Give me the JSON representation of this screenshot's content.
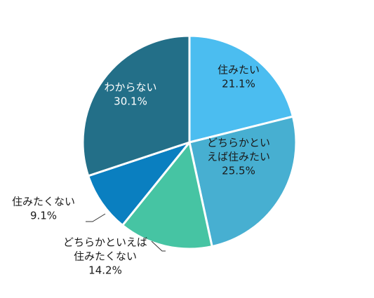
{
  "chart_data": {
    "type": "pie",
    "start_angle_deg": 0,
    "direction": "clockwise",
    "slices": [
      {
        "label_lines": [
          "住みたい",
          "21.1%"
        ],
        "value": 21.1,
        "color": "#4bbdf0",
        "label_color": "#1a1a1a",
        "label_position": "inside"
      },
      {
        "label_lines": [
          "どちらかとい",
          "えば住みたい",
          "25.5%"
        ],
        "value": 25.5,
        "color": "#47afd1",
        "label_color": "#1a1a1a",
        "label_position": "inside"
      },
      {
        "label_lines": [
          "どちらかといえば",
          "住みたくない",
          "14.2%"
        ],
        "value": 14.2,
        "color": "#46c4a3",
        "label_color": "#1a1a1a",
        "label_position": "outside"
      },
      {
        "label_lines": [
          "住みたくない",
          "9.1%"
        ],
        "value": 9.1,
        "color": "#0a7fc0",
        "label_color": "#1a1a1a",
        "label_position": "outside"
      },
      {
        "label_lines": [
          "わからない",
          "30.1%"
        ],
        "value": 30.1,
        "color": "#236f88",
        "label_color": "#ffffff",
        "label_position": "inside"
      }
    ]
  }
}
